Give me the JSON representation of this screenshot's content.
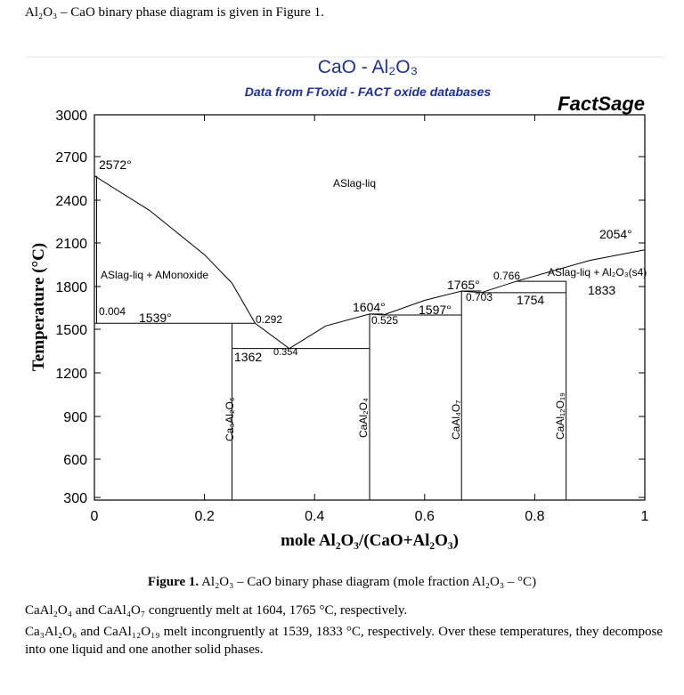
{
  "intro_text": "Al₂O₃ – CaO binary phase diagram is given in Figure 1.",
  "diagram": {
    "title": "CaO - Al₂O₃",
    "subtitle": "Data from FToxid - FACT oxide databases",
    "brand": "FactSage",
    "colors": {
      "title": "#1b2fa0",
      "subtitle": "#1b2fa0",
      "ink": "#000000"
    },
    "x_axis": {
      "label": "mole Al₂O₃/(CaO+Al₂O₃)",
      "range": [
        0,
        1
      ],
      "ticks": [
        "0",
        "0.2",
        "0.4",
        "0.6",
        "0.8",
        "1"
      ],
      "tick_values": [
        0,
        0.2,
        0.4,
        0.6,
        0.8,
        1
      ]
    },
    "y_axis": {
      "label": "Temperature (°C)",
      "range": [
        300,
        3000
      ],
      "ticks": [
        "300",
        "600",
        "900",
        "1200",
        "1500",
        "1800",
        "2100",
        "2400",
        "2700",
        "3000"
      ],
      "tick_values": [
        300,
        600,
        900,
        1200,
        1500,
        1800,
        2100,
        2400,
        2700,
        3000
      ]
    },
    "phase_fields": {
      "liquid": "ASlag-liq",
      "left_two_phase": "ASlag-liq + AMonoxide",
      "right_two_phase": "ASlag-liq + Al₂O₃(s4)"
    },
    "compounds": [
      "Ca₃Al₂O₆",
      "CaAl₂O₄",
      "CaAl₄O₇",
      "CaAl₁₂O₁₉"
    ],
    "compound_x": [
      0.25,
      0.5,
      0.667,
      0.857
    ],
    "temperatures": {
      "t2572": "2572°",
      "t2054": "2054°",
      "t1539": "1539°",
      "t1362": "1362",
      "t1604": "1604°",
      "t1597": "1597°",
      "t1765": "1765°",
      "t1754": "1754",
      "t1833": "1833"
    },
    "compositions": {
      "c0004": "0.004",
      "c0292": "0.292",
      "c0354": "0.354",
      "c0525": "0.525",
      "c0703": "0.703",
      "c0766": "0.766"
    },
    "invariants": [
      {
        "x": 0.0,
        "t": 1539
      },
      {
        "x": 0.25,
        "t": 1539
      },
      {
        "x": 0.292,
        "t": 1539
      },
      {
        "x": 0.25,
        "t": 1362
      },
      {
        "x": 0.5,
        "t": 1362
      },
      {
        "x": 0.5,
        "t": 1604
      },
      {
        "x": 0.525,
        "t": 1597
      },
      {
        "x": 0.667,
        "t": 1597
      },
      {
        "x": 0.667,
        "t": 1765
      },
      {
        "x": 0.703,
        "t": 1754
      },
      {
        "x": 0.857,
        "t": 1754
      },
      {
        "x": 0.766,
        "t": 1833
      },
      {
        "x": 0.857,
        "t": 1833
      }
    ],
    "liquidus": [
      {
        "x": 0.0,
        "t": 2572
      },
      {
        "x": 0.1,
        "t": 2330
      },
      {
        "x": 0.2,
        "t": 2020
      },
      {
        "x": 0.25,
        "t": 1820
      },
      {
        "x": 0.292,
        "t": 1539
      },
      {
        "x": 0.354,
        "t": 1362
      },
      {
        "x": 0.42,
        "t": 1520
      },
      {
        "x": 0.5,
        "t": 1604
      },
      {
        "x": 0.525,
        "t": 1597
      },
      {
        "x": 0.6,
        "t": 1700
      },
      {
        "x": 0.667,
        "t": 1765
      },
      {
        "x": 0.703,
        "t": 1754
      },
      {
        "x": 0.766,
        "t": 1833
      },
      {
        "x": 0.9,
        "t": 1980
      },
      {
        "x": 1.0,
        "t": 2054
      }
    ]
  },
  "caption_label": "Figure 1.",
  "caption_text": " Al₂O₃ – CaO binary phase diagram (mole fraction Al₂O₃ – °C)",
  "paragraph1": "CaAl₂O₄ and CaAl₄O₇ congruently melt at 1604, 1765 °C, respectively.",
  "paragraph2": "Ca₃Al₂O₆ and CaAl₁₂O₁₉ melt incongruently at 1539, 1833 °C, respectively. Over these temperatures, they decompose into one liquid and one another solid phases."
}
